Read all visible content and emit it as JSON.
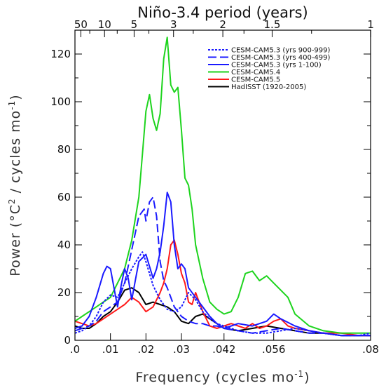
{
  "chart_data": {
    "type": "line",
    "title": "Niño-3.4 period (years)",
    "xlabel": "Frequency (cycles mo",
    "xlabel_sup": "-1",
    "xlabel_end": ")",
    "ylabel": "Power (°C",
    "ylabel_sup2": "2",
    "ylabel_mid": " / cycles mo",
    "ylabel_sup": "-1",
    "ylabel_end": ")",
    "xlim": [
      0,
      0.0833
    ],
    "ylim": [
      0,
      130
    ],
    "bottom_ticks": [
      {
        "value": 0,
        "label": ".0"
      },
      {
        "value": 0.01,
        "label": ".01"
      },
      {
        "value": 0.02,
        "label": ".02"
      },
      {
        "value": 0.03,
        "label": ".03"
      },
      {
        "value": 0.042,
        "label": ".042"
      },
      {
        "value": 0.056,
        "label": ".056"
      },
      {
        "value": 0.0833,
        "label": ".08"
      }
    ],
    "top_ticks": [
      {
        "value": 0.001667,
        "label": "50"
      },
      {
        "value": 0.008333,
        "label": "10"
      },
      {
        "value": 0.016667,
        "label": "5"
      },
      {
        "value": 0.027778,
        "label": "3"
      },
      {
        "value": 0.041667,
        "label": "2"
      },
      {
        "value": 0.055556,
        "label": "1.5"
      },
      {
        "value": 0.083333,
        "label": "1"
      }
    ],
    "y_ticks": [
      {
        "value": 0,
        "label": "0"
      },
      {
        "value": 20,
        "label": "20"
      },
      {
        "value": 40,
        "label": "40"
      },
      {
        "value": 60,
        "label": "60"
      },
      {
        "value": 80,
        "label": "80"
      },
      {
        "value": 100,
        "label": "100"
      },
      {
        "value": 120,
        "label": "120"
      }
    ],
    "legend_position": "top-right",
    "series": [
      {
        "name": "CESM-CAM5.3 (yrs 900-999)",
        "color": "#1a1aff",
        "dash": "3,2",
        "x": [
          0.0,
          0.002,
          0.004,
          0.006,
          0.008,
          0.01,
          0.012,
          0.014,
          0.016,
          0.018,
          0.019,
          0.02,
          0.022,
          0.024,
          0.026,
          0.028,
          0.03,
          0.032,
          0.034,
          0.036,
          0.038,
          0.04,
          0.042,
          0.046,
          0.05,
          0.054,
          0.058,
          0.062,
          0.066,
          0.07,
          0.075,
          0.08,
          0.0833
        ],
        "y": [
          3,
          4,
          6,
          10,
          16,
          19,
          18,
          24,
          30,
          35,
          37,
          33,
          23,
          17,
          13,
          12,
          14,
          20,
          17,
          12,
          9,
          7,
          6,
          4,
          3,
          3,
          4,
          5,
          4,
          3,
          2,
          2,
          3
        ]
      },
      {
        "name": "CESM-CAM5.3 (yrs 400-499)",
        "color": "#1a1aff",
        "dash": "12,5",
        "x": [
          0.0,
          0.002,
          0.004,
          0.006,
          0.008,
          0.01,
          0.012,
          0.014,
          0.016,
          0.018,
          0.0195,
          0.02,
          0.021,
          0.022,
          0.023,
          0.024,
          0.025,
          0.026,
          0.027,
          0.028,
          0.03,
          0.032,
          0.034,
          0.036,
          0.038,
          0.04,
          0.042,
          0.046,
          0.05,
          0.054,
          0.058,
          0.062,
          0.066,
          0.07,
          0.075,
          0.08,
          0.0833
        ],
        "y": [
          4,
          5,
          6,
          8,
          12,
          14,
          16,
          24,
          38,
          52,
          55,
          50,
          58,
          60,
          52,
          33,
          25,
          22,
          18,
          14,
          10,
          8,
          7,
          7,
          6,
          6,
          5,
          4,
          3,
          4,
          5,
          4,
          3,
          3,
          2,
          2,
          2
        ]
      },
      {
        "name": "CESM-CAM5.3 (yrs 1-100)",
        "color": "#1a1aff",
        "dash": "",
        "x": [
          0.0,
          0.002,
          0.004,
          0.006,
          0.008,
          0.009,
          0.01,
          0.011,
          0.012,
          0.013,
          0.014,
          0.015,
          0.016,
          0.017,
          0.018,
          0.02,
          0.021,
          0.022,
          0.023,
          0.024,
          0.025,
          0.026,
          0.027,
          0.028,
          0.029,
          0.03,
          0.031,
          0.032,
          0.034,
          0.036,
          0.038,
          0.04,
          0.042,
          0.046,
          0.05,
          0.054,
          0.056,
          0.058,
          0.062,
          0.066,
          0.07,
          0.075,
          0.08,
          0.0833
        ],
        "y": [
          5,
          6,
          10,
          18,
          28,
          31,
          30,
          22,
          14,
          23,
          30,
          26,
          17,
          25,
          33,
          36,
          31,
          26,
          30,
          37,
          48,
          62,
          58,
          40,
          30,
          32,
          30,
          22,
          18,
          14,
          10,
          7,
          5,
          7,
          6,
          8,
          11,
          9,
          6,
          4,
          3,
          2,
          2,
          2
        ]
      },
      {
        "name": "CESM-CAM5.4",
        "color": "#1ed41e",
        "dash": "",
        "x": [
          0.0,
          0.002,
          0.004,
          0.006,
          0.008,
          0.01,
          0.012,
          0.014,
          0.016,
          0.018,
          0.019,
          0.02,
          0.021,
          0.022,
          0.023,
          0.024,
          0.025,
          0.026,
          0.027,
          0.028,
          0.029,
          0.03,
          0.031,
          0.032,
          0.033,
          0.034,
          0.036,
          0.038,
          0.04,
          0.042,
          0.044,
          0.046,
          0.048,
          0.05,
          0.052,
          0.054,
          0.056,
          0.058,
          0.06,
          0.062,
          0.066,
          0.07,
          0.075,
          0.08,
          0.0833
        ],
        "y": [
          8,
          10,
          12,
          14,
          16,
          18,
          24,
          30,
          42,
          60,
          78,
          96,
          103,
          93,
          88,
          95,
          118,
          127,
          107,
          104,
          106,
          88,
          68,
          65,
          55,
          40,
          26,
          16,
          13,
          11,
          12,
          18,
          28,
          29,
          25,
          27,
          24,
          21,
          18,
          11,
          6,
          4,
          3,
          3,
          3
        ]
      },
      {
        "name": "CESM-CAM5.5",
        "color": "#ff1a1a",
        "dash": "",
        "x": [
          0.0,
          0.002,
          0.004,
          0.006,
          0.008,
          0.01,
          0.012,
          0.014,
          0.016,
          0.018,
          0.02,
          0.022,
          0.024,
          0.025,
          0.026,
          0.027,
          0.028,
          0.029,
          0.03,
          0.031,
          0.032,
          0.033,
          0.034,
          0.036,
          0.038,
          0.04,
          0.044,
          0.048,
          0.05,
          0.052,
          0.054,
          0.056,
          0.058,
          0.06,
          0.062,
          0.066,
          0.07,
          0.075,
          0.08,
          0.0833
        ],
        "y": [
          8,
          7,
          6,
          7,
          9,
          11,
          13,
          15,
          18,
          16,
          12,
          14,
          20,
          24,
          30,
          40,
          42,
          36,
          28,
          24,
          16,
          15,
          20,
          12,
          6,
          5,
          7,
          5,
          7,
          5,
          6,
          8,
          9,
          6,
          5,
          4,
          3,
          3,
          2,
          2
        ]
      },
      {
        "name": "HadISST (1920-2005)",
        "color": "#000000",
        "dash": "",
        "x": [
          0.0,
          0.002,
          0.004,
          0.006,
          0.008,
          0.01,
          0.012,
          0.014,
          0.016,
          0.018,
          0.02,
          0.022,
          0.024,
          0.026,
          0.028,
          0.03,
          0.032,
          0.034,
          0.036,
          0.038,
          0.04,
          0.042,
          0.046,
          0.05,
          0.054,
          0.058,
          0.062,
          0.066,
          0.07,
          0.075,
          0.08,
          0.0833
        ],
        "y": [
          6,
          5,
          5,
          7,
          10,
          12,
          16,
          21,
          22,
          20,
          15,
          16,
          15,
          14,
          12,
          8,
          7,
          10,
          11,
          9,
          7,
          5,
          4,
          5,
          6,
          5,
          4,
          3,
          3,
          2,
          2,
          2
        ]
      }
    ]
  }
}
